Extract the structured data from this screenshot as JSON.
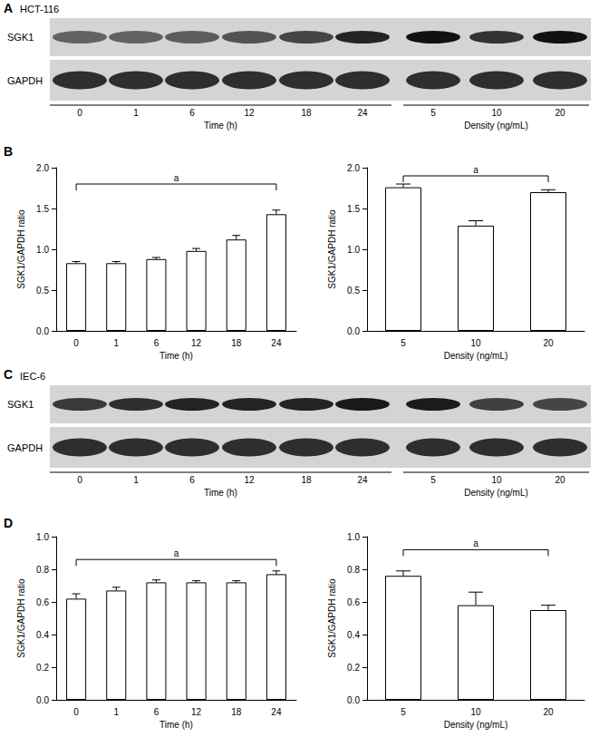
{
  "panel_labels": [
    "A",
    "B",
    "C",
    "D"
  ],
  "blots": [
    {
      "cell_line": "HCT-116",
      "rows": [
        "SGK1",
        "GAPDH"
      ],
      "groups": [
        {
          "label": "Time (h)",
          "lanes": [
            "0",
            "1",
            "6",
            "12",
            "18",
            "24"
          ]
        },
        {
          "label": "Density (ng/mL)",
          "lanes": [
            "5",
            "10",
            "20"
          ]
        }
      ]
    },
    {
      "cell_line": "IEC-6",
      "rows": [
        "SGK1",
        "GAPDH"
      ],
      "groups": [
        {
          "label": "Time (h)",
          "lanes": [
            "0",
            "1",
            "6",
            "12",
            "18",
            "24"
          ]
        },
        {
          "label": "Density (ng/mL)",
          "lanes": [
            "5",
            "10",
            "20"
          ]
        }
      ]
    }
  ],
  "chart_data": [
    {
      "type": "bar",
      "x_label": "Time (h)",
      "y_label": "SGK1/GAPDH ratio",
      "categories": [
        "0",
        "1",
        "6",
        "12",
        "18",
        "24"
      ],
      "values": [
        0.83,
        0.83,
        0.88,
        0.98,
        1.12,
        1.43
      ],
      "errors": [
        0.02,
        0.02,
        0.02,
        0.03,
        0.05,
        0.05
      ],
      "color": "#ffffff",
      "grid": false,
      "ylim": [
        0,
        2
      ],
      "yticks": [
        {
          "value": 0,
          "label": "0.0"
        },
        {
          "value": 0.5,
          "label": "0.5"
        },
        {
          "value": 1,
          "label": "1.0"
        },
        {
          "value": 1.5,
          "label": "1.5"
        },
        {
          "value": 2,
          "label": "2.0"
        }
      ],
      "annotations": [
        {
          "text": "a",
          "from": "0",
          "to": "24",
          "y": 1.8
        }
      ]
    },
    {
      "type": "bar",
      "x_label": "Density (ng/mL)",
      "y_label": "SGK1/GAPDH ratio",
      "categories": [
        "5",
        "10",
        "20"
      ],
      "values": [
        1.76,
        1.29,
        1.7
      ],
      "errors": [
        0.04,
        0.06,
        0.03
      ],
      "color": "#ffffff",
      "grid": false,
      "ylim": [
        0,
        2
      ],
      "yticks": [
        {
          "value": 0,
          "label": "0.0"
        },
        {
          "value": 0.5,
          "label": "0.5"
        },
        {
          "value": 1,
          "label": "1.0"
        },
        {
          "value": 1.5,
          "label": "1.5"
        },
        {
          "value": 2,
          "label": "2.0"
        }
      ],
      "annotations": [
        {
          "text": "a",
          "from": "5",
          "to": "20",
          "y": 1.9
        }
      ]
    },
    {
      "type": "bar",
      "x_label": "Time (h)",
      "y_label": "SGK1/GAPDH ratio",
      "categories": [
        "0",
        "1",
        "6",
        "12",
        "18",
        "24"
      ],
      "values": [
        0.62,
        0.67,
        0.72,
        0.72,
        0.72,
        0.77
      ],
      "errors": [
        0.03,
        0.02,
        0.015,
        0.01,
        0.01,
        0.02
      ],
      "color": "#ffffff",
      "grid": false,
      "ylim": [
        0,
        1
      ],
      "yticks": [
        {
          "value": 0,
          "label": "0.0"
        },
        {
          "value": 0.2,
          "label": "0.2"
        },
        {
          "value": 0.4,
          "label": "0.4"
        },
        {
          "value": 0.6,
          "label": "0.6"
        },
        {
          "value": 0.8,
          "label": "0.8"
        },
        {
          "value": 1,
          "label": "1.0"
        }
      ],
      "annotations": [
        {
          "text": "a",
          "from": "0",
          "to": "24",
          "y": 0.86
        }
      ]
    },
    {
      "type": "bar",
      "x_label": "Density (ng/mL)",
      "y_label": "SGK1/GAPDH ratio",
      "categories": [
        "5",
        "10",
        "20"
      ],
      "values": [
        0.76,
        0.58,
        0.55
      ],
      "errors": [
        0.03,
        0.08,
        0.03
      ],
      "color": "#ffffff",
      "grid": false,
      "ylim": [
        0,
        1
      ],
      "yticks": [
        {
          "value": 0,
          "label": "0.0"
        },
        {
          "value": 0.2,
          "label": "0.2"
        },
        {
          "value": 0.4,
          "label": "0.4"
        },
        {
          "value": 0.6,
          "label": "0.6"
        },
        {
          "value": 0.8,
          "label": "0.8"
        },
        {
          "value": 1,
          "label": "1.0"
        }
      ],
      "annotations": [
        {
          "text": "a",
          "from": "5",
          "to": "20",
          "y": 0.92
        }
      ]
    }
  ]
}
